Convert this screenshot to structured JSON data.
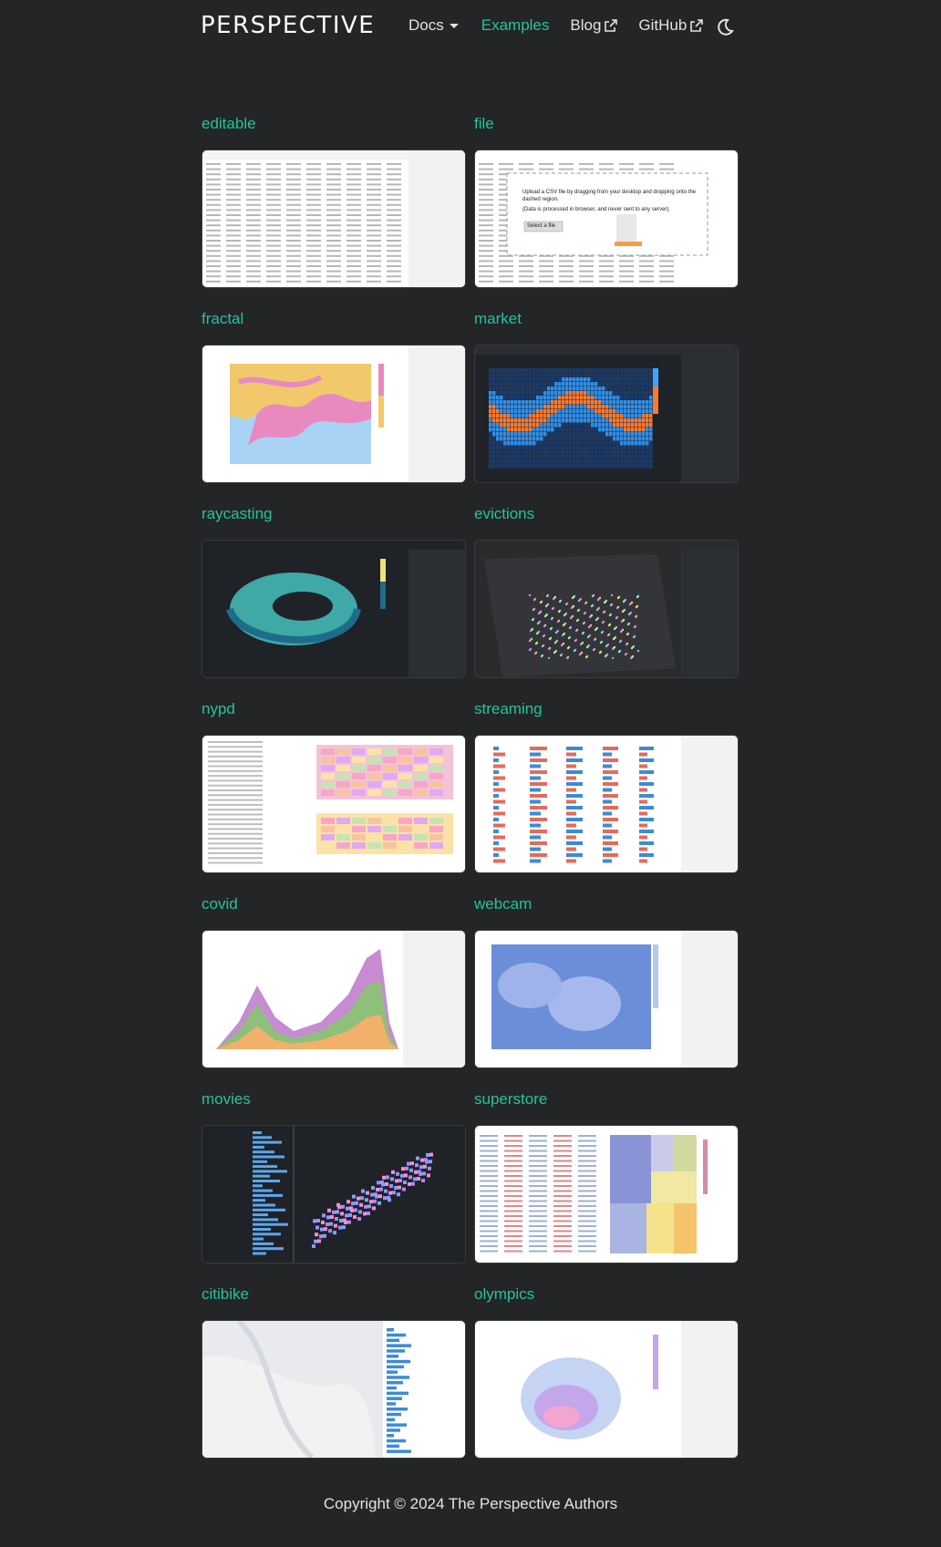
{
  "nav": {
    "brand": "PERSPECTIVE",
    "links": [
      {
        "label": "Docs",
        "icon": "chevron-down-icon",
        "active": false
      },
      {
        "label": "Examples",
        "icon": "",
        "active": true
      },
      {
        "label": "Blog",
        "icon": "external-link-icon",
        "active": false
      },
      {
        "label": "GitHub",
        "icon": "external-link-icon",
        "active": false
      }
    ],
    "theme_toggle_icon": "moon-icon"
  },
  "examples": [
    {
      "title": "editable",
      "theme": "light",
      "kind": "datagrid"
    },
    {
      "title": "file",
      "theme": "light",
      "kind": "file-upload",
      "upload_text": "Upload a CSV file by dragging from your desktop and dropping onto the dashed region.",
      "upload_note": "(Data is processed in browser, and never sent to any server).",
      "upload_button": "Select a file"
    },
    {
      "title": "fractal",
      "theme": "light",
      "kind": "fractal-heatmap"
    },
    {
      "title": "market",
      "theme": "dark",
      "kind": "market-heatmap"
    },
    {
      "title": "raycasting",
      "theme": "dark",
      "kind": "torus"
    },
    {
      "title": "evictions",
      "theme": "dark",
      "kind": "map-scatter"
    },
    {
      "title": "nypd",
      "theme": "light",
      "kind": "heatmaps"
    },
    {
      "title": "streaming",
      "theme": "light",
      "kind": "streaming-grid"
    },
    {
      "title": "covid",
      "theme": "light",
      "kind": "stacked-area"
    },
    {
      "title": "webcam",
      "theme": "light",
      "kind": "webcam-heatmap"
    },
    {
      "title": "movies",
      "theme": "dark",
      "kind": "movies"
    },
    {
      "title": "superstore",
      "theme": "light",
      "kind": "treemap"
    },
    {
      "title": "citibike",
      "theme": "light",
      "kind": "citibike-map"
    },
    {
      "title": "olympics",
      "theme": "light",
      "kind": "olympics-heatmap"
    }
  ],
  "footer": {
    "text": "Copyright © 2024 The Perspective Authors"
  },
  "colors": {
    "background": "#242526",
    "accent": "#25c2a0",
    "text": "#e3e3e3"
  }
}
